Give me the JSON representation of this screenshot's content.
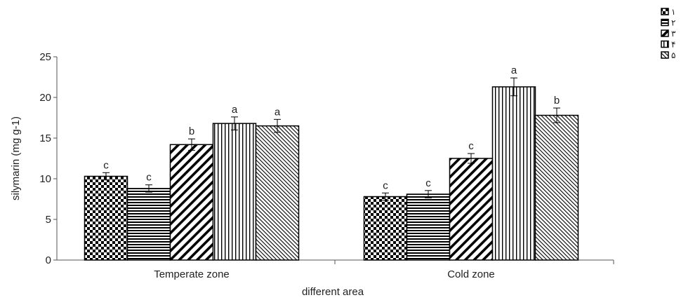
{
  "chart_data": {
    "type": "bar",
    "title": "",
    "xlabel": "different area",
    "ylabel": "silymarin (mg g-1)",
    "ylim": [
      0,
      25
    ],
    "yticks": [
      0,
      5,
      10,
      15,
      20,
      25
    ],
    "grid": false,
    "legend_position": "top-right",
    "categories": [
      "Temperate zone",
      "Cold zone"
    ],
    "series": [
      {
        "name": "١",
        "pattern": "checker",
        "values": [
          10.3,
          7.8
        ],
        "errors": [
          0.45,
          0.45
        ],
        "letters": [
          "c",
          "c"
        ]
      },
      {
        "name": "٢",
        "pattern": "horizontal",
        "values": [
          8.8,
          8.1
        ],
        "errors": [
          0.45,
          0.45
        ],
        "letters": [
          "c",
          "c"
        ]
      },
      {
        "name": "٣",
        "pattern": "diagonal-thick",
        "values": [
          14.2,
          12.5
        ],
        "errors": [
          0.7,
          0.6
        ],
        "letters": [
          "b",
          "c"
        ]
      },
      {
        "name": "۴",
        "pattern": "vertical",
        "values": [
          16.8,
          21.3
        ],
        "errors": [
          0.8,
          1.1
        ],
        "letters": [
          "a",
          "a"
        ]
      },
      {
        "name": "۵",
        "pattern": "diagonal-thin",
        "values": [
          16.5,
          17.8
        ],
        "errors": [
          0.8,
          0.9
        ],
        "letters": [
          "a",
          "b"
        ]
      }
    ]
  }
}
